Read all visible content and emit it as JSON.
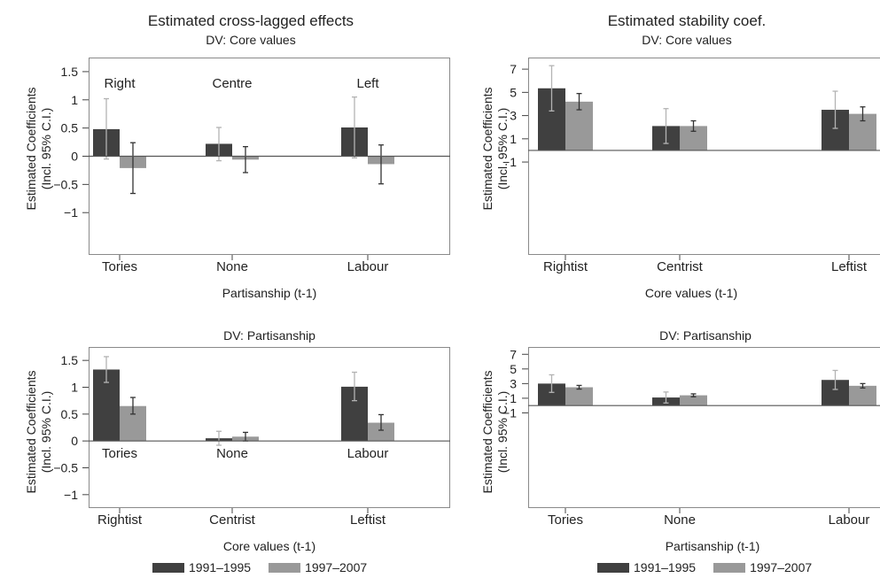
{
  "titles": {
    "left": "Estimated cross-lagged effects",
    "right": "Estimated stability coef."
  },
  "colors": {
    "series1": "#404040",
    "series2": "#999999",
    "error_series1": "#b3b3b3",
    "error_series2": "#333333"
  },
  "legend": [
    "1991–1995",
    "1997–2007"
  ],
  "chart_data": [
    {
      "type": "bar",
      "subtitle": "DV: Core values",
      "ylabel": [
        "Estimated Coefficients",
        "(Incl. 95% C.I.)"
      ],
      "xlabel": "Partisanship (t-1)",
      "categories": [
        "Tories",
        "None",
        "Labour"
      ],
      "annotations": [
        "Right",
        "Centre",
        "Left"
      ],
      "annotation_position": "top",
      "yticks": [
        1.5,
        1,
        0.5,
        0,
        -0.5,
        -1
      ],
      "ytick_labels": [
        "1.5",
        "1",
        "0.5",
        "0",
        "−0.5",
        "−1"
      ],
      "ylim": [
        -1.75,
        1.75
      ],
      "series": [
        {
          "name": "1991–1995",
          "values": [
            0.48,
            0.22,
            0.51
          ],
          "ci_low": [
            -0.05,
            -0.08,
            -0.03
          ],
          "ci_high": [
            1.02,
            0.51,
            1.05
          ]
        },
        {
          "name": "1997–2007",
          "values": [
            -0.21,
            -0.06,
            -0.14
          ],
          "ci_low": [
            -0.66,
            -0.29,
            -0.49
          ],
          "ci_high": [
            0.24,
            0.17,
            0.2
          ]
        }
      ]
    },
    {
      "type": "bar",
      "subtitle": "DV: Core values",
      "ylabel": [
        "Estimated Coefficients",
        "(Incl. 95% C.I.)"
      ],
      "xlabel": "Core values (t-1)",
      "categories": [
        "Rightist",
        "Centrist",
        "Leftist"
      ],
      "annotations": [],
      "yticks": [
        7,
        5,
        3,
        1,
        -1
      ],
      "ytick_labels": [
        "7",
        "5",
        "3",
        "1",
        "−1"
      ],
      "ylim": [
        -9,
        8
      ],
      "series": [
        {
          "name": "1991–1995",
          "values": [
            5.35,
            2.1,
            3.5
          ],
          "ci_low": [
            3.4,
            0.6,
            1.9
          ],
          "ci_high": [
            7.3,
            3.6,
            5.1
          ]
        },
        {
          "name": "1997–2007",
          "values": [
            4.2,
            2.1,
            3.15
          ],
          "ci_low": [
            3.5,
            1.65,
            2.55
          ],
          "ci_high": [
            4.9,
            2.55,
            3.75
          ]
        }
      ]
    },
    {
      "type": "bar",
      "subtitle": "DV: Partisanship",
      "ylabel": [
        "Estimated Coefficients",
        "(Incl. 95% C.I.)"
      ],
      "xlabel": "Core values (t-1)",
      "categories": [
        "Rightist",
        "Centrist",
        "Leftist"
      ],
      "annotations": [
        "Tories",
        "None",
        "Labour"
      ],
      "annotation_position": "below-zero",
      "yticks": [
        1.5,
        1,
        0.5,
        0,
        -0.5,
        -1
      ],
      "ytick_labels": [
        "1.5",
        "1",
        "0.5",
        "0",
        "−0.5",
        "−1"
      ],
      "ylim": [
        -1.25,
        1.75
      ],
      "series": [
        {
          "name": "1991–1995",
          "values": [
            1.33,
            0.05,
            1.01
          ],
          "ci_low": [
            1.09,
            -0.08,
            0.75
          ],
          "ci_high": [
            1.57,
            0.18,
            1.28
          ]
        },
        {
          "name": "1997–2007",
          "values": [
            0.65,
            0.08,
            0.34
          ],
          "ci_low": [
            0.5,
            0.0,
            0.2
          ],
          "ci_high": [
            0.81,
            0.16,
            0.49
          ]
        }
      ]
    },
    {
      "type": "bar",
      "subtitle": "DV: Partisanship",
      "ylabel": [
        "Estimated Coefficients",
        "(Incl. 95% C.I.)"
      ],
      "xlabel": "Partisanship (t-1)",
      "categories": [
        "Tories",
        "None",
        "Labour"
      ],
      "annotations": [],
      "yticks": [
        7,
        5,
        3,
        1,
        -1
      ],
      "ytick_labels": [
        "7",
        "5",
        "3",
        "1",
        "−1"
      ],
      "ylim": [
        -14,
        8
      ],
      "series": [
        {
          "name": "1991–1995",
          "values": [
            3.0,
            1.1,
            3.5
          ],
          "ci_low": [
            1.8,
            0.35,
            2.2
          ],
          "ci_high": [
            4.2,
            1.85,
            4.8
          ]
        },
        {
          "name": "1997–2007",
          "values": [
            2.5,
            1.4,
            2.7
          ],
          "ci_low": [
            2.25,
            1.2,
            2.4
          ],
          "ci_high": [
            2.75,
            1.6,
            3.0
          ]
        }
      ]
    }
  ]
}
